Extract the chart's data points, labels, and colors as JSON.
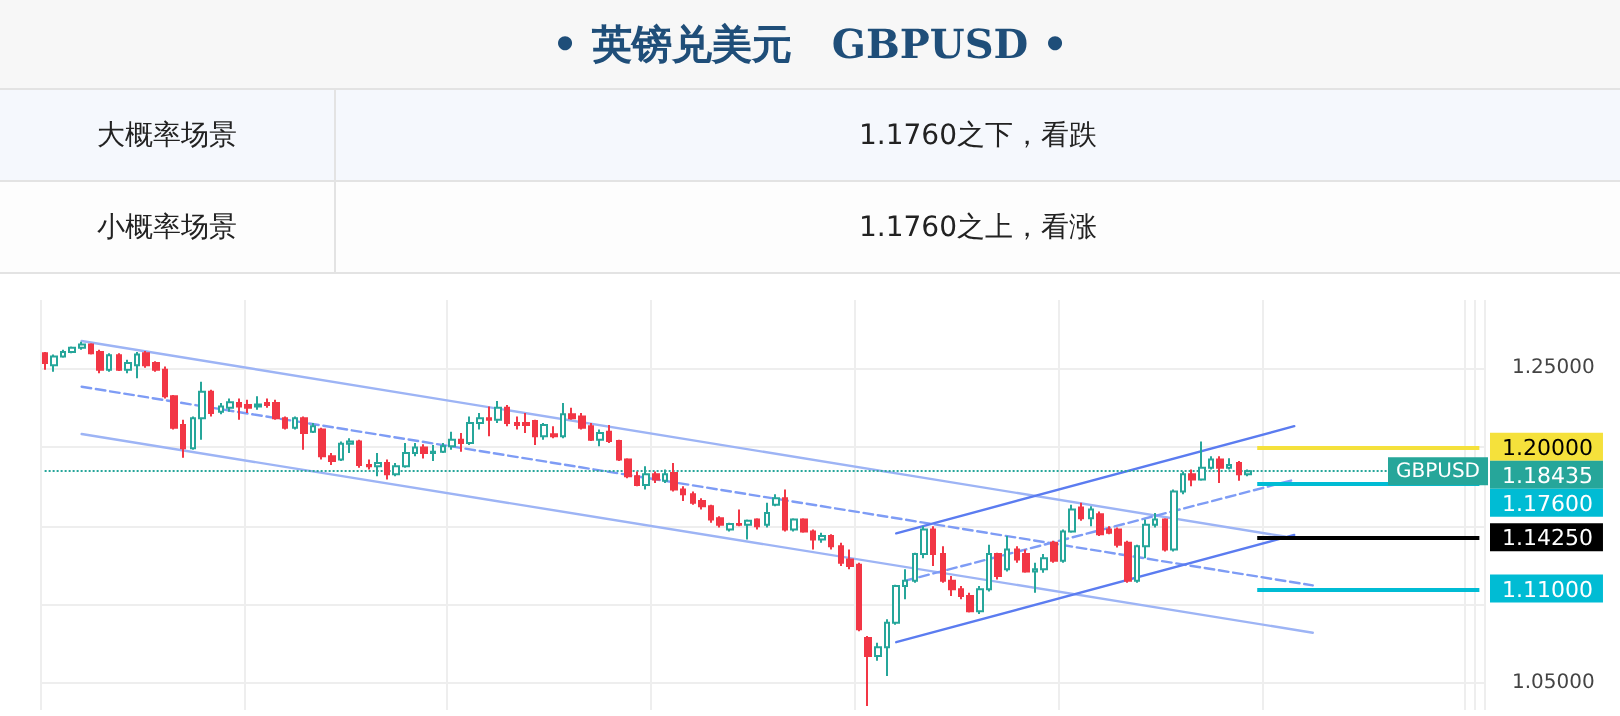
{
  "chart_data": {
    "type": "candlestick",
    "title": "• 英镑兑美元　GBPUSD •",
    "annotations": [
      "大概率场景",
      "1.1760之下，看跌",
      "小概率场景",
      "1.1760之上，看涨",
      {
        "text": "GBPUSD",
        "y": 1.18435
      }
    ],
    "categories": [
      null,
      null,
      null,
      null,
      null,
      null,
      null,
      null,
      null,
      null,
      null,
      null,
      null,
      null,
      null,
      null,
      null,
      null,
      null,
      null,
      null,
      null,
      null,
      null,
      null,
      null,
      null,
      null,
      null,
      null,
      null,
      null,
      null,
      null,
      null,
      null,
      null,
      null,
      null,
      null,
      null,
      null,
      null,
      null,
      null,
      null,
      null,
      null,
      null,
      null,
      null,
      null,
      null,
      null,
      null,
      null,
      null,
      null,
      null,
      null,
      null,
      null,
      null,
      null,
      null,
      null,
      null,
      null,
      null,
      null,
      null,
      null,
      null,
      null,
      null,
      null,
      null,
      null,
      null,
      null,
      null,
      null,
      null,
      null,
      null,
      null,
      null,
      null,
      null,
      null,
      null,
      null,
      null,
      null,
      null,
      null,
      null,
      null,
      null,
      null,
      null,
      null,
      null,
      null,
      null,
      null,
      null,
      null,
      null,
      null,
      null,
      null,
      null,
      null,
      null,
      null,
      null,
      null,
      null,
      null,
      null,
      null,
      null,
      null,
      null,
      null,
      null,
      null,
      null,
      null,
      null,
      null,
      null,
      null,
      null,
      null,
      null,
      null,
      null,
      null,
      null,
      null,
      null,
      null,
      null,
      null,
      null,
      null,
      null,
      null,
      null,
      null,
      null,
      null,
      null,
      null
    ],
    "ohlc": [
      [
        1.2593,
        1.2601,
        1.2488,
        1.253
      ],
      [
        1.2517,
        1.2585,
        1.2475,
        1.2572
      ],
      [
        1.2572,
        1.2614,
        1.2563,
        1.2601
      ],
      [
        1.2601,
        1.2635,
        1.2593,
        1.2627
      ],
      [
        1.2627,
        1.2665,
        1.2614,
        1.2648
      ],
      [
        1.2648,
        1.2656,
        1.2585,
        1.2593
      ],
      [
        1.2601,
        1.2614,
        1.2466,
        1.2488
      ],
      [
        1.2488,
        1.2593,
        1.2475,
        1.258
      ],
      [
        1.258,
        1.2593,
        1.2479,
        1.2488
      ],
      [
        1.2488,
        1.2551,
        1.2466,
        1.253
      ],
      [
        1.2517,
        1.2601,
        1.2433,
        1.2585
      ],
      [
        1.2593,
        1.2606,
        1.25,
        1.2517
      ],
      [
        1.253,
        1.2542,
        1.2475,
        1.2488
      ],
      [
        1.2488,
        1.2509,
        1.2306,
        1.2319
      ],
      [
        1.2319,
        1.2327,
        1.2108,
        1.212
      ],
      [
        1.2137,
        1.2171,
        1.193,
        1.199
      ],
      [
        1.199,
        1.2192,
        1.1981,
        1.218
      ],
      [
        1.218,
        1.2412,
        1.2044,
        1.2348
      ],
      [
        1.2348,
        1.2361,
        1.2192,
        1.2213
      ],
      [
        1.2222,
        1.2277,
        1.2205,
        1.2255
      ],
      [
        1.2247,
        1.2306,
        1.2222,
        1.2281
      ],
      [
        1.2277,
        1.2306,
        1.2171,
        1.2255
      ],
      [
        1.2264,
        1.2298,
        1.2213,
        1.2247
      ],
      [
        1.2255,
        1.2319,
        1.2234,
        1.2268
      ],
      [
        1.2277,
        1.2306,
        1.2247,
        1.2264
      ],
      [
        1.2277,
        1.2298,
        1.2171,
        1.218
      ],
      [
        1.218,
        1.2192,
        1.2108,
        1.212
      ],
      [
        1.212,
        1.2192,
        1.2108,
        1.218
      ],
      [
        1.218,
        1.2192,
        1.1981,
        1.2087
      ],
      [
        1.2095,
        1.215,
        1.2087,
        1.2129
      ],
      [
        1.2108,
        1.212,
        1.1918,
        1.1939
      ],
      [
        1.1939,
        1.196,
        1.1884,
        1.1909
      ],
      [
        1.1918,
        1.2032,
        1.1909,
        1.2019
      ],
      [
        1.2019,
        1.2053,
        1.196,
        1.2032
      ],
      [
        1.2032,
        1.2044,
        1.1867,
        1.1884
      ],
      [
        1.1884,
        1.1918,
        1.1855,
        1.1876
      ],
      [
        1.1876,
        1.196,
        1.1812,
        1.1897
      ],
      [
        1.1897,
        1.1918,
        1.1791,
        1.1825
      ],
      [
        1.1825,
        1.1897,
        1.1812,
        1.1876
      ],
      [
        1.1876,
        1.2023,
        1.1867,
        1.196
      ],
      [
        1.196,
        1.2023,
        1.1939,
        1.1994
      ],
      [
        1.1994,
        1.2015,
        1.1925,
        1.196
      ],
      [
        1.196,
        1.2011,
        1.1909,
        1.1968
      ],
      [
        1.1968,
        1.2023,
        1.196,
        1.2002
      ],
      [
        1.2002,
        1.2095,
        1.1981,
        1.2044
      ],
      [
        1.2044,
        1.2087,
        1.1968,
        1.2023
      ],
      [
        1.2023,
        1.2192,
        1.2011,
        1.215
      ],
      [
        1.215,
        1.2213,
        1.2108,
        1.218
      ],
      [
        1.218,
        1.2255,
        1.2066,
        1.2171
      ],
      [
        1.2171,
        1.2289,
        1.215,
        1.2247
      ],
      [
        1.2247,
        1.2264,
        1.2129,
        1.215
      ],
      [
        1.215,
        1.2192,
        1.2108,
        1.2137
      ],
      [
        1.215,
        1.2213,
        1.2087,
        1.2137
      ],
      [
        1.2163,
        1.2171,
        1.2011,
        1.2066
      ],
      [
        1.2066,
        1.215,
        1.2044,
        1.2137
      ],
      [
        1.2078,
        1.2129,
        1.2053,
        1.2066
      ],
      [
        1.2066,
        1.2277,
        1.2053,
        1.2205
      ],
      [
        1.2205,
        1.2247,
        1.2171,
        1.218
      ],
      [
        1.2192,
        1.2213,
        1.2108,
        1.212
      ],
      [
        1.2129,
        1.215,
        1.2036,
        1.2044
      ],
      [
        1.2044,
        1.2108,
        1.2002,
        1.2087
      ],
      [
        1.2095,
        1.2137,
        1.2023,
        1.2036
      ],
      [
        1.2036,
        1.2044,
        1.1909,
        1.1918
      ],
      [
        1.1918,
        1.1926,
        1.18,
        1.1812
      ],
      [
        1.1812,
        1.1842,
        1.1749,
        1.1757
      ],
      [
        1.1757,
        1.1876,
        1.1728,
        1.1825
      ],
      [
        1.1825,
        1.1842,
        1.177,
        1.1791
      ],
      [
        1.1783,
        1.1855,
        1.177,
        1.1825
      ],
      [
        1.1833,
        1.1897,
        1.1715,
        1.1728
      ],
      [
        1.1728,
        1.1749,
        1.1656,
        1.1698
      ],
      [
        1.1698,
        1.1715,
        1.1631,
        1.1644
      ],
      [
        1.1656,
        1.1673,
        1.1601,
        1.1622
      ],
      [
        1.1622,
        1.1631,
        1.1517,
        1.1538
      ],
      [
        1.1546,
        1.1559,
        1.1487,
        1.1504
      ],
      [
        1.1475,
        1.1517,
        1.1462,
        1.1509
      ],
      [
        1.1509,
        1.1601,
        1.1496,
        1.1504
      ],
      [
        1.1504,
        1.1538,
        1.1411,
        1.153
      ],
      [
        1.1538,
        1.1546,
        1.1475,
        1.1496
      ],
      [
        1.1504,
        1.1644,
        1.1487,
        1.158
      ],
      [
        1.1631,
        1.1698,
        1.1622,
        1.1673
      ],
      [
        1.1673,
        1.1728,
        1.1462,
        1.1475
      ],
      [
        1.1475,
        1.1546,
        1.1462,
        1.1538
      ],
      [
        1.1538,
        1.1546,
        1.1454,
        1.1462
      ],
      [
        1.1462,
        1.1475,
        1.1348,
        1.1411
      ],
      [
        1.1411,
        1.1454,
        1.139,
        1.1433
      ],
      [
        1.1433,
        1.1445,
        1.1348,
        1.1369
      ],
      [
        1.1369,
        1.139,
        1.1243,
        1.1264
      ],
      [
        1.1285,
        1.1348,
        1.1222,
        1.1243
      ],
      [
        1.1251,
        1.1264,
        1.0829,
        1.0842
      ],
      [
        1.0787,
        1.08,
        1.0356,
        1.0673
      ],
      [
        1.0673,
        1.0757,
        1.0643,
        1.0728
      ],
      [
        1.0728,
        1.0905,
        1.0546,
        1.0884
      ],
      [
        1.0884,
        1.1124,
        1.0871,
        1.1116
      ],
      [
        1.1116,
        1.1222,
        1.1032,
        1.115
      ],
      [
        1.115,
        1.1327,
        1.1137,
        1.1319
      ],
      [
        1.1319,
        1.1496,
        1.1293,
        1.1475
      ],
      [
        1.1475,
        1.1496,
        1.1243,
        1.1319
      ],
      [
        1.1319,
        1.1369,
        1.1137,
        1.115
      ],
      [
        1.115,
        1.1179,
        1.1053,
        1.1095
      ],
      [
        1.1095,
        1.1116,
        1.1032,
        1.1053
      ],
      [
        1.1053,
        1.1074,
        1.0948,
        1.0956
      ],
      [
        1.0956,
        1.1116,
        1.0939,
        1.1095
      ],
      [
        1.1095,
        1.1378,
        1.1082,
        1.1319
      ],
      [
        1.1319,
        1.1327,
        1.1158,
        1.1179
      ],
      [
        1.1222,
        1.1433,
        1.1209,
        1.1348
      ],
      [
        1.1348,
        1.1369,
        1.1264,
        1.1285
      ],
      [
        1.1319,
        1.1348,
        1.12,
        1.1209
      ],
      [
        1.1209,
        1.1264,
        1.1074,
        1.1222
      ],
      [
        1.1222,
        1.1319,
        1.12,
        1.1293
      ],
      [
        1.139,
        1.1403,
        1.1264,
        1.1276
      ],
      [
        1.1276,
        1.1475,
        1.1264,
        1.1462
      ],
      [
        1.1462,
        1.1631,
        1.1454,
        1.1601
      ],
      [
        1.1614,
        1.1644,
        1.153,
        1.1546
      ],
      [
        1.1546,
        1.1622,
        1.1496,
        1.1601
      ],
      [
        1.1572,
        1.1589,
        1.1433,
        1.1445
      ],
      [
        1.1475,
        1.1496,
        1.1445,
        1.1454
      ],
      [
        1.1475,
        1.1487,
        1.1361,
        1.1378
      ],
      [
        1.139,
        1.1403,
        1.1137,
        1.115
      ],
      [
        1.115,
        1.1378,
        1.1137,
        1.1369
      ],
      [
        1.1369,
        1.1538,
        1.1293,
        1.1504
      ],
      [
        1.1504,
        1.158,
        1.1487,
        1.1538
      ],
      [
        1.1538,
        1.1546,
        1.1335,
        1.1348
      ],
      [
        1.1348,
        1.1728,
        1.1335,
        1.1715
      ],
      [
        1.1715,
        1.1842,
        1.1698,
        1.1825
      ],
      [
        1.1825,
        1.1855,
        1.1749,
        1.1791
      ],
      [
        1.1791,
        1.2032,
        1.1783,
        1.1867
      ],
      [
        1.1867,
        1.1939,
        1.1855,
        1.1918
      ],
      [
        1.1918,
        1.1939,
        1.177,
        1.1867
      ],
      [
        1.1867,
        1.1926,
        1.1855,
        1.1884
      ],
      [
        1.1897,
        1.1909,
        1.1783,
        1.1825
      ],
      [
        1.1825,
        1.1855,
        1.1812,
        1.18435
      ],
      null,
      null,
      null,
      null,
      null,
      null,
      null,
      null,
      null,
      null,
      null,
      null,
      null,
      null,
      null,
      null,
      null,
      null,
      null,
      null,
      null,
      null,
      null,
      null,
      null
    ],
    "series": [
      {
        "type": "line",
        "color": "#9db4f5",
        "values": [
          null,
          null,
          null,
          null,
          1.267,
          null,
          null,
          null,
          null,
          null,
          null,
          null,
          null,
          null,
          null,
          null,
          null,
          null,
          null,
          null,
          null,
          null,
          null,
          null,
          null,
          null,
          null,
          null,
          null,
          null,
          null,
          null,
          null,
          null,
          null,
          null,
          null,
          null,
          null,
          null,
          null,
          null,
          null,
          null,
          null,
          null,
          null,
          null,
          null,
          null,
          null,
          null,
          null,
          null,
          null,
          null,
          null,
          null,
          null,
          null,
          null,
          null,
          null,
          null,
          null,
          null,
          null,
          null,
          null,
          null,
          null,
          null,
          null,
          null,
          null,
          null,
          null,
          null,
          null,
          null,
          null,
          null,
          null,
          null,
          null,
          null,
          null,
          null,
          null,
          null,
          null,
          null,
          null,
          null,
          null,
          null,
          null,
          null,
          null,
          null,
          null,
          null,
          null,
          null,
          null,
          null,
          null,
          null,
          null,
          null,
          null,
          null,
          null,
          null,
          null,
          null,
          null,
          null,
          null,
          null,
          null,
          null,
          null,
          null,
          null,
          null,
          null,
          null,
          null,
          null,
          null,
          null,
          null,
          null,
          1.143,
          null,
          null,
          null,
          null,
          null,
          null,
          null,
          null,
          null,
          null,
          null,
          null,
          null,
          null,
          null,
          null,
          null,
          null,
          null,
          null,
          null
        ]
      },
      {
        "type": "line",
        "color": "#7e9cf5",
        "line_style": "dashed",
        "values": [
          null,
          null,
          null,
          null,
          1.238,
          null,
          null,
          null,
          null,
          null,
          null,
          null,
          null,
          null,
          null,
          null,
          null,
          null,
          null,
          null,
          null,
          null,
          null,
          null,
          null,
          null,
          null,
          null,
          null,
          null,
          null,
          null,
          null,
          null,
          null,
          null,
          null,
          null,
          null,
          null,
          null,
          null,
          null,
          null,
          null,
          null,
          null,
          null,
          null,
          null,
          null,
          null,
          null,
          null,
          null,
          null,
          null,
          null,
          null,
          null,
          null,
          null,
          null,
          null,
          null,
          null,
          null,
          null,
          null,
          null,
          null,
          null,
          null,
          null,
          null,
          null,
          null,
          null,
          null,
          null,
          null,
          null,
          null,
          null,
          null,
          null,
          null,
          null,
          null,
          null,
          null,
          null,
          null,
          null,
          null,
          null,
          null,
          null,
          null,
          null,
          null,
          null,
          null,
          null,
          null,
          null,
          null,
          null,
          null,
          null,
          null,
          null,
          null,
          null,
          null,
          null,
          null,
          null,
          null,
          null,
          null,
          null,
          null,
          null,
          null,
          null,
          null,
          null,
          null,
          null,
          null,
          null,
          null,
          null,
          null,
          null,
          null,
          1.112,
          null,
          null,
          null,
          null,
          null,
          null,
          null,
          null,
          null,
          null,
          null,
          null,
          null,
          null,
          null,
          null,
          null,
          null
        ]
      },
      {
        "type": "line",
        "color": "#9db4f5",
        "values": [
          null,
          null,
          null,
          null,
          1.208,
          null,
          null,
          null,
          null,
          null,
          null,
          null,
          null,
          null,
          null,
          null,
          null,
          null,
          null,
          null,
          null,
          null,
          null,
          null,
          null,
          null,
          null,
          null,
          null,
          null,
          null,
          null,
          null,
          null,
          null,
          null,
          null,
          null,
          null,
          null,
          null,
          null,
          null,
          null,
          null,
          null,
          null,
          null,
          null,
          null,
          null,
          null,
          null,
          null,
          null,
          null,
          null,
          null,
          null,
          null,
          null,
          null,
          null,
          null,
          null,
          null,
          null,
          null,
          null,
          null,
          null,
          null,
          null,
          null,
          null,
          null,
          null,
          null,
          null,
          null,
          null,
          null,
          null,
          null,
          null,
          null,
          null,
          null,
          null,
          null,
          null,
          null,
          null,
          null,
          null,
          null,
          null,
          null,
          null,
          null,
          null,
          null,
          null,
          null,
          null,
          null,
          null,
          null,
          null,
          null,
          null,
          null,
          null,
          null,
          null,
          null,
          null,
          null,
          null,
          null,
          null,
          null,
          null,
          null,
          null,
          null,
          null,
          null,
          null,
          null,
          null,
          null,
          null,
          null,
          null,
          null,
          null,
          1.082,
          null,
          null,
          null,
          null,
          null,
          null,
          null,
          null,
          null,
          null,
          null,
          null,
          null,
          null,
          null,
          null,
          null,
          null
        ]
      },
      {
        "type": "line",
        "color": "#5b7cf0",
        "values": [
          null,
          null,
          null,
          null,
          null,
          null,
          null,
          null,
          null,
          null,
          null,
          null,
          null,
          null,
          null,
          null,
          null,
          null,
          null,
          null,
          null,
          null,
          null,
          null,
          null,
          null,
          null,
          null,
          null,
          null,
          null,
          null,
          null,
          null,
          null,
          null,
          null,
          null,
          null,
          null,
          null,
          null,
          null,
          null,
          null,
          null,
          null,
          null,
          null,
          null,
          null,
          null,
          null,
          null,
          null,
          null,
          null,
          null,
          null,
          null,
          null,
          null,
          null,
          null,
          null,
          null,
          null,
          null,
          null,
          null,
          null,
          null,
          null,
          null,
          null,
          null,
          null,
          null,
          null,
          null,
          null,
          null,
          null,
          null,
          null,
          null,
          null,
          null,
          null,
          null,
          null,
          null,
          1.145,
          null,
          null,
          null,
          null,
          null,
          null,
          null,
          null,
          null,
          null,
          null,
          null,
          null,
          null,
          null,
          null,
          null,
          null,
          null,
          null,
          null,
          null,
          null,
          null,
          null,
          null,
          null,
          null,
          null,
          null,
          null,
          null,
          null,
          null,
          null,
          null,
          null,
          null,
          null,
          null,
          null,
          null,
          1.213,
          null,
          null,
          null,
          null,
          null,
          null,
          null,
          null,
          null,
          null,
          null,
          null,
          null,
          null,
          null,
          null,
          null,
          null,
          null,
          null
        ]
      },
      {
        "type": "line",
        "color": "#7e9cf5",
        "line_style": "dashed",
        "values": [
          null,
          null,
          null,
          null,
          null,
          null,
          null,
          null,
          null,
          null,
          null,
          null,
          null,
          null,
          null,
          null,
          null,
          null,
          null,
          null,
          null,
          null,
          null,
          null,
          null,
          null,
          null,
          null,
          null,
          null,
          null,
          null,
          null,
          null,
          null,
          null,
          null,
          null,
          null,
          null,
          null,
          null,
          null,
          null,
          null,
          null,
          null,
          null,
          null,
          null,
          null,
          null,
          null,
          null,
          null,
          null,
          null,
          null,
          null,
          null,
          null,
          null,
          null,
          null,
          null,
          null,
          null,
          null,
          null,
          null,
          null,
          null,
          null,
          null,
          null,
          null,
          null,
          null,
          null,
          null,
          null,
          null,
          null,
          null,
          null,
          null,
          null,
          null,
          null,
          null,
          null,
          null,
          null,
          1.115,
          null,
          null,
          null,
          null,
          null,
          null,
          null,
          null,
          null,
          null,
          null,
          null,
          null,
          null,
          null,
          null,
          null,
          null,
          null,
          null,
          null,
          null,
          null,
          null,
          null,
          null,
          null,
          null,
          null,
          null,
          null,
          null,
          null,
          null,
          null,
          null,
          null,
          null,
          null,
          null,
          null,
          1.179,
          null,
          null,
          null,
          null,
          null,
          null,
          null,
          null,
          null,
          null,
          null,
          null,
          null,
          null,
          null,
          null,
          null,
          null,
          null,
          null
        ]
      },
      {
        "type": "line",
        "color": "#5b7cf0",
        "values": [
          null,
          null,
          null,
          null,
          null,
          null,
          null,
          null,
          null,
          null,
          null,
          null,
          null,
          null,
          null,
          null,
          null,
          null,
          null,
          null,
          null,
          null,
          null,
          null,
          null,
          null,
          null,
          null,
          null,
          null,
          null,
          null,
          null,
          null,
          null,
          null,
          null,
          null,
          null,
          null,
          null,
          null,
          null,
          null,
          null,
          null,
          null,
          null,
          null,
          null,
          null,
          null,
          null,
          null,
          null,
          null,
          null,
          null,
          null,
          null,
          null,
          null,
          null,
          null,
          null,
          null,
          null,
          null,
          null,
          null,
          null,
          null,
          null,
          null,
          null,
          null,
          null,
          null,
          null,
          null,
          null,
          null,
          null,
          null,
          null,
          null,
          null,
          null,
          null,
          null,
          null,
          null,
          1.076,
          null,
          null,
          null,
          null,
          null,
          null,
          null,
          null,
          null,
          null,
          null,
          null,
          null,
          null,
          null,
          null,
          null,
          null,
          null,
          null,
          null,
          null,
          null,
          null,
          null,
          null,
          null,
          null,
          null,
          null,
          null,
          null,
          null,
          null,
          null,
          null,
          null,
          null,
          null,
          null,
          null,
          null,
          1.144,
          null,
          null,
          null,
          null,
          null,
          null,
          null,
          null,
          null,
          null,
          null,
          null,
          null,
          null,
          null,
          null,
          null,
          null,
          null,
          null
        ]
      }
    ],
    "ylim": [
      1.033,
      1.293
    ],
    "yticks": [
      {
        "value": 1.05,
        "label": "1.05000"
      },
      {
        "value": 1.1,
        "label": null
      },
      {
        "value": 1.15,
        "label": null
      },
      {
        "value": 1.2,
        "label": null
      },
      {
        "value": 1.25,
        "label": "1.25000"
      }
    ],
    "ref_lines": [
      {
        "axis": "y",
        "value": 1.2,
        "label": "1.20000",
        "color": "#f5e13b"
      },
      {
        "axis": "y",
        "value": 1.18435,
        "label": "1.18435",
        "color": "#26a69a",
        "line_style": "dotted"
      },
      {
        "axis": "y",
        "value": 1.176,
        "label": "1.17600",
        "color": "#00bcd4"
      },
      {
        "axis": "y",
        "value": 1.1425,
        "label": "1.14250",
        "color": "#000000"
      },
      {
        "axis": "y",
        "value": 1.11,
        "label": "1.11000",
        "color": "#00bcd4"
      }
    ],
    "grid": true,
    "tick_labels": "y"
  }
}
